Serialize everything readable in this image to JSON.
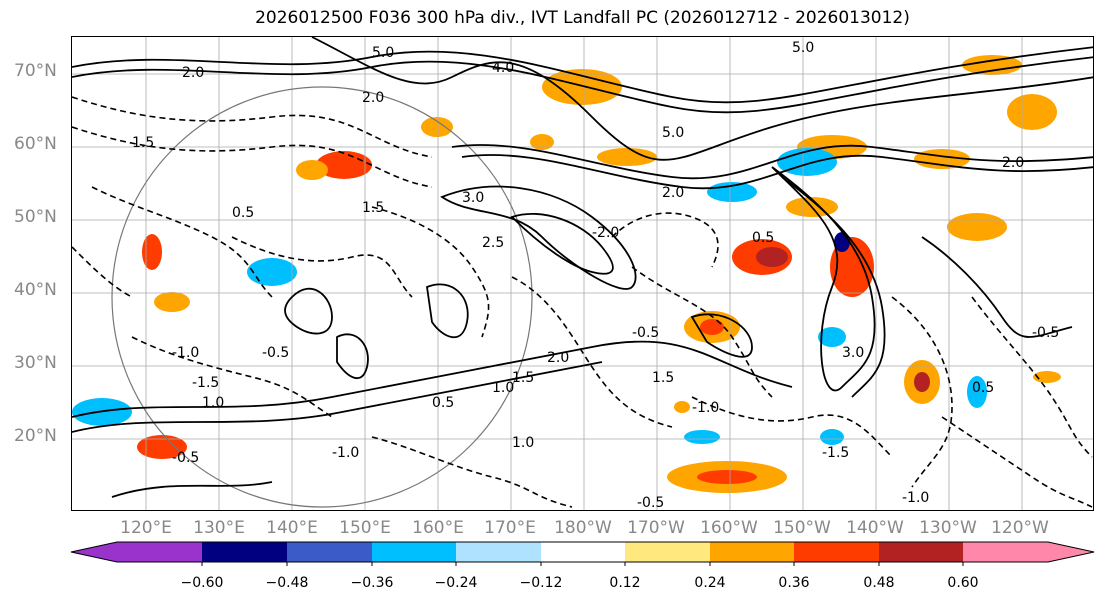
{
  "title": "2026012500 F036 300 hPa div., IVT Landfall PC (2026012712 - 2026013012)",
  "lat_labels": [
    "70°N",
    "60°N",
    "50°N",
    "40°N",
    "30°N",
    "20°N"
  ],
  "lon_labels": [
    "120°E",
    "130°E",
    "140°E",
    "150°E",
    "160°E",
    "170°E",
    "180°W",
    "170°W",
    "160°W",
    "150°W",
    "140°W",
    "130°W",
    "120°W"
  ],
  "colorbar": {
    "labels": [
      "−0.60",
      "−0.48",
      "−0.36",
      "−0.24",
      "−0.12",
      "0.12",
      "0.24",
      "0.36",
      "0.48",
      "0.60"
    ],
    "colors": [
      "#9933cc",
      "#000080",
      "#3a5bc8",
      "#00bfff",
      "#aee2ff",
      "#ffffff",
      "#ffe97f",
      "#ffa500",
      "#ff3c00",
      "#b22222",
      "#ff88aa"
    ]
  },
  "contour_labels": [
    "5.0",
    "2.0",
    "1.5",
    "1.0",
    "0.5",
    "-0.5",
    "-1.0",
    "-1.5",
    "-2.0",
    "4.0",
    "3.0",
    "2.5"
  ]
}
